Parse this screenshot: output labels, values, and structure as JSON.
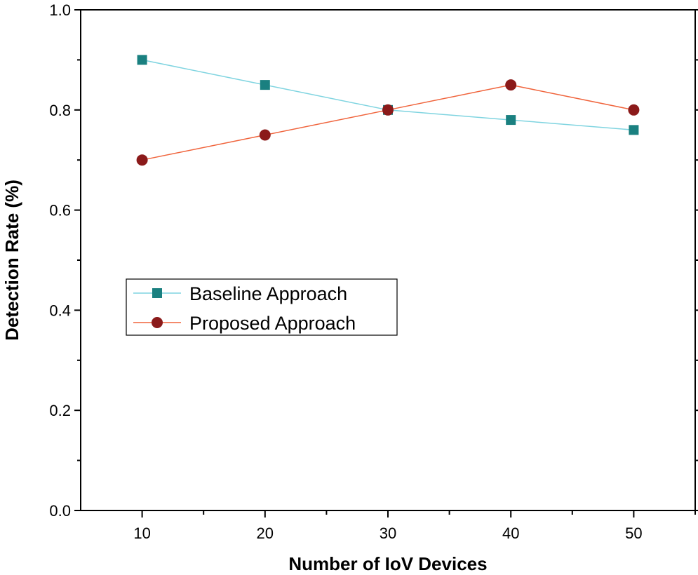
{
  "chart_data": {
    "type": "line",
    "title": "",
    "xlabel": "Number of IoV Devices",
    "ylabel": "Detection Rate (%)",
    "x": [
      10,
      20,
      30,
      40,
      50
    ],
    "xlim": [
      5,
      55
    ],
    "ylim": [
      0.0,
      1.0
    ],
    "x_ticks": [
      10,
      20,
      30,
      40,
      50
    ],
    "x_tick_labels": [
      "10",
      "20",
      "30",
      "40",
      "50"
    ],
    "y_ticks": [
      0.0,
      0.2,
      0.4,
      0.6,
      0.8,
      1.0
    ],
    "y_tick_labels": [
      "0.0",
      "0.2",
      "0.4",
      "0.6",
      "0.8",
      "1.0"
    ],
    "grid": false,
    "legend_position": "middle-left",
    "series": [
      {
        "name": "Baseline Approach",
        "values": [
          0.9,
          0.85,
          0.8,
          0.78,
          0.76
        ],
        "marker": "square",
        "marker_color": "#1a8080",
        "line_color": "#7fd4e0"
      },
      {
        "name": "Proposed Approach",
        "values": [
          0.7,
          0.75,
          0.8,
          0.85,
          0.8
        ],
        "marker": "circle",
        "marker_color": "#8b1a1a",
        "line_color": "#f0643c"
      }
    ]
  }
}
